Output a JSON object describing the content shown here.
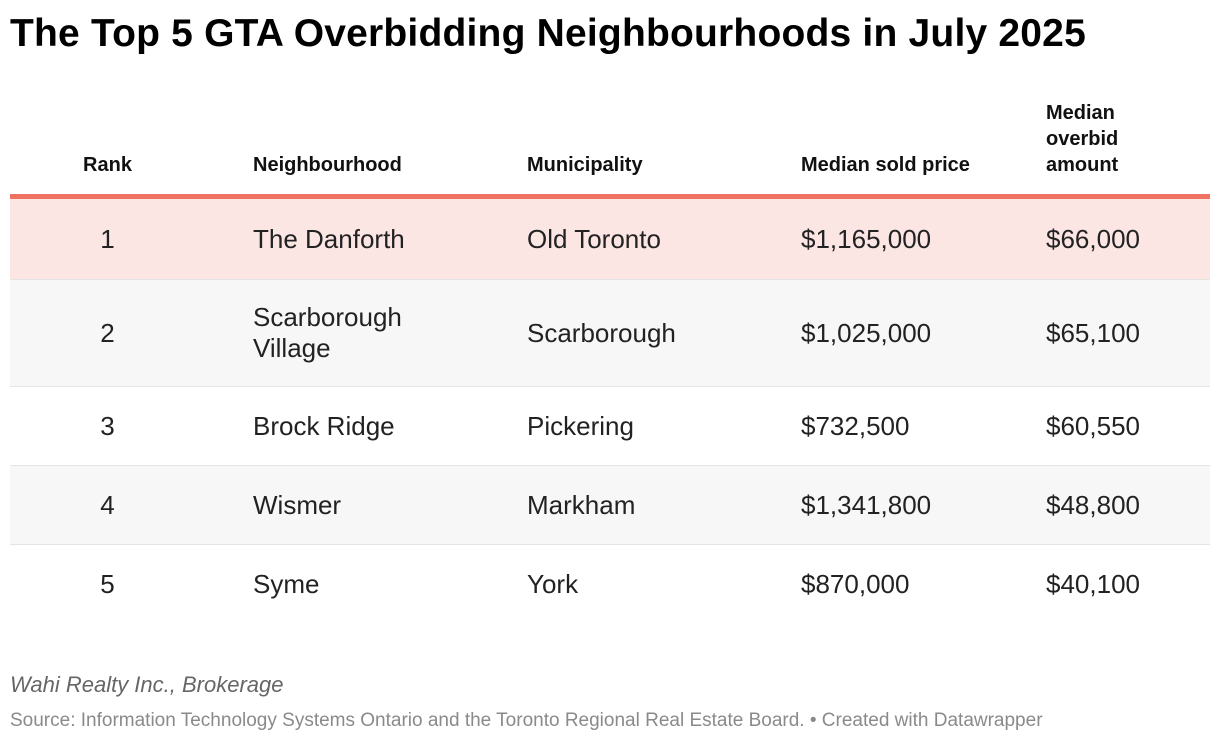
{
  "header": {
    "title": "The Top 5 GTA Overbidding Neighbourhoods in July 2025"
  },
  "table": {
    "columns": [
      "Rank",
      "Neighbourhood",
      "Municipality",
      "Median sold price",
      "Median overbid amount"
    ],
    "rows": [
      [
        "1",
        "The Danforth",
        "Old Toronto",
        "$1,165,000",
        "$66,000"
      ],
      [
        "2",
        "Scarborough Village",
        "Scarborough",
        "$1,025,000",
        "$65,100"
      ],
      [
        "3",
        "Brock Ridge",
        "Pickering",
        "$732,500",
        "$60,550"
      ],
      [
        "4",
        "Wismer",
        "Markham",
        "$1,341,800",
        "$48,800"
      ],
      [
        "5",
        "Syme",
        "York",
        "$870,000",
        "$40,100"
      ]
    ]
  },
  "footer": {
    "note": "Wahi Realty Inc., Brokerage",
    "source": "Source: Information Technology Systems Ontario and the Toronto Regional Real Estate Board.",
    "credit": "• Created with Datawrapper"
  }
}
